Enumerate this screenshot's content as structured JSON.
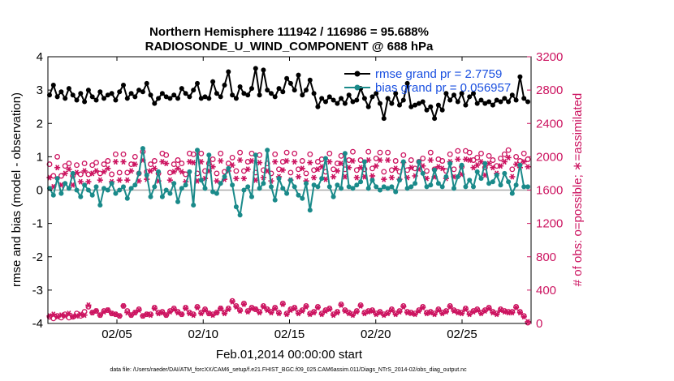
{
  "chart_data": {
    "type": "line",
    "title_line1": "Northern Hemisphere 111942 / 116986 = 95.688%",
    "title_line2": "RADIOSONDE_U_WIND_COMPONENT @ 688 hPa",
    "xlabel": "Feb.01,2014 00:00:00 start",
    "ylabel_left": "rmse and bias (model - observation)",
    "ylabel_right": "# of obs: o=possible; ∗=assimilated",
    "footnote": "data file: /Users/raeder/DAI/ATM_forcXX/CAM6_setup/f.e21.FHIST_BGC.f09_025.CAM6assim.011/Diags_NTrS_2014-02/obs_diag_output.nc",
    "x_day_range": [
      1,
      29
    ],
    "ylim_left": [
      -4,
      4
    ],
    "ylim_right": [
      0,
      3200
    ],
    "x_ticks": [
      {
        "day": 5,
        "label": "02/05"
      },
      {
        "day": 10,
        "label": "02/10"
      },
      {
        "day": 15,
        "label": "02/15"
      },
      {
        "day": 20,
        "label": "02/20"
      },
      {
        "day": 25,
        "label": "02/25"
      }
    ],
    "y_ticks_left": [
      {
        "value": 4,
        "label": "4"
      },
      {
        "value": 3,
        "label": "3"
      },
      {
        "value": 2,
        "label": "2"
      },
      {
        "value": 1,
        "label": "1"
      },
      {
        "value": 0,
        "label": "0"
      },
      {
        "value": -1,
        "label": "-1"
      },
      {
        "value": -2,
        "label": "-2"
      },
      {
        "value": -3,
        "label": "-3"
      },
      {
        "value": -4,
        "label": "-4"
      }
    ],
    "y_ticks_right": [
      {
        "value": 3200,
        "label": "3200"
      },
      {
        "value": 2800,
        "label": "2800"
      },
      {
        "value": 2400,
        "label": "2400"
      },
      {
        "value": 2000,
        "label": "2000"
      },
      {
        "value": 1600,
        "label": "1600"
      },
      {
        "value": 1200,
        "label": "1200"
      },
      {
        "value": 800,
        "label": "800"
      },
      {
        "value": 400,
        "label": "400"
      },
      {
        "value": 0,
        "label": "0"
      }
    ],
    "legend": [
      {
        "name": "rmse grand pr = 2.7759",
        "color": "#000000"
      },
      {
        "name": "bias grand pr = 0.056957",
        "color": "#127f7f"
      }
    ],
    "colors": {
      "rmse": "#000000",
      "bias": "#1a8a8a",
      "obs": "#cc1460",
      "zero_line": "#aaaaaa",
      "legend_text": "#1a50e0"
    },
    "series": [
      {
        "name": "rmse",
        "axis": "left",
        "values": [
          2.85,
          3.15,
          2.8,
          2.95,
          2.75,
          3.05,
          2.85,
          2.7,
          2.9,
          2.65,
          3.0,
          2.8,
          2.7,
          2.95,
          2.75,
          2.85,
          2.9,
          2.7,
          2.95,
          3.15,
          2.75,
          2.9,
          2.8,
          3.0,
          2.95,
          3.2,
          2.85,
          2.6,
          2.75,
          2.9,
          2.8,
          2.75,
          2.85,
          2.75,
          3.05,
          2.9,
          2.8,
          3.0,
          3.2,
          2.75,
          2.8,
          2.75,
          3.25,
          2.9,
          2.8,
          3.15,
          3.55,
          2.85,
          2.75,
          3.1,
          2.9,
          2.85,
          3.05,
          3.65,
          2.85,
          3.6,
          3.0,
          2.9,
          2.8,
          3.05,
          2.95,
          3.35,
          3.2,
          3.0,
          3.45,
          2.85,
          3.0,
          3.3,
          2.9,
          2.5,
          2.75,
          2.65,
          2.8,
          2.7,
          2.6,
          2.75,
          2.6,
          2.85,
          2.65,
          2.7,
          3.05,
          2.75,
          2.5,
          2.8,
          2.9,
          2.6,
          2.15,
          2.75,
          2.6,
          2.9,
          2.55,
          2.7,
          3.2,
          2.5,
          2.55,
          2.6,
          2.65,
          2.4,
          2.5,
          2.15,
          2.55,
          2.4,
          2.9,
          2.7,
          2.85,
          2.65,
          2.9,
          2.55,
          2.8,
          2.9,
          2.6,
          2.7,
          2.6,
          2.65,
          2.55,
          2.7,
          2.65,
          2.75,
          2.65,
          2.85,
          2.7,
          3.4,
          2.75,
          2.65
        ]
      },
      {
        "name": "bias",
        "axis": "left",
        "values": [
          0.05,
          -0.15,
          0.35,
          -0.1,
          0.2,
          0.05,
          0.5,
          0.0,
          -0.2,
          0.15,
          0.0,
          -0.15,
          0.1,
          -0.45,
          0.05,
          0.0,
          0.2,
          -0.1,
          0.0,
          0.1,
          -0.25,
          0.05,
          0.15,
          0.5,
          1.25,
          0.45,
          -0.2,
          0.1,
          0.55,
          -0.2,
          0.0,
          -0.1,
          0.2,
          -0.35,
          0.05,
          0.15,
          0.55,
          -0.45,
          1.2,
          0.3,
          0.05,
          1.05,
          -0.05,
          -0.1,
          0.2,
          0.4,
          0.65,
          0.15,
          -0.5,
          -0.75,
          0.0,
          0.1,
          -0.2,
          1.05,
          0.05,
          0.2,
          1.2,
          0.1,
          -0.3,
          0.35,
          0.05,
          -0.1,
          0.3,
          0.1,
          -0.15,
          -0.25,
          0.2,
          -0.6,
          0.15,
          0.1,
          0.35,
          0.95,
          0.1,
          -0.2,
          0.15,
          0.05,
          1.1,
          0.1,
          0.05,
          0.15,
          0.25,
          0.85,
          0.05,
          0.3,
          0.1,
          0.0,
          0.1,
          0.05,
          0.1,
          -0.05,
          0.3,
          0.85,
          0.05,
          0.1,
          0.2,
          0.85,
          0.5,
          0.1,
          0.15,
          0.6,
          0.2,
          0.1,
          0.4,
          0.8,
          0.05,
          0.4,
          0.75,
          0.1,
          0.3,
          0.1,
          0.55,
          0.35,
          0.8,
          0.2,
          0.25,
          0.45,
          0.15,
          0.5,
          0.25,
          -0.1,
          0.15,
          0.75,
          0.1,
          0.1
        ]
      },
      {
        "name": "obs_possible",
        "axis": "right",
        "marker": "o",
        "values": [
          1910,
          1770,
          2000,
          1770,
          1890,
          1920,
          1770,
          1900,
          1790,
          1920,
          1790,
          1900,
          1930,
          1800,
          1910,
          1950,
          1790,
          2030,
          1810,
          2030,
          1810,
          1910,
          2000,
          1800,
          2060,
          1820,
          1910,
          1950,
          1800,
          2040,
          2020,
          1810,
          1910,
          1960,
          1920,
          1790,
          2040,
          2030,
          1800,
          2040,
          1830,
          1920,
          1970,
          1800,
          2040,
          1820,
          1920,
          1990,
          1830,
          2050,
          1830,
          1940,
          2040,
          1810,
          2020,
          1840,
          1920,
          1800,
          2030,
          1850,
          1940,
          2050,
          1810,
          2040,
          1850,
          1950,
          1800,
          2030,
          1840,
          1940,
          1970,
          1820,
          2040,
          1850,
          1920,
          2010,
          1850,
          1960,
          2060,
          1840,
          1960,
          1850,
          2060,
          1860,
          1980,
          2050,
          1820,
          2050,
          1840,
          1950,
          1820,
          2020,
          1840,
          1960,
          1860,
          1940,
          1980,
          1830,
          2050,
          1850,
          1970,
          1950,
          1830,
          2030,
          1850,
          2070,
          1880,
          2070,
          2050,
          1960,
          1990,
          2040,
          1870,
          2010,
          1960,
          1890,
          1980,
          2030,
          2080,
          1850,
          2000,
          1950,
          2040,
          1970
        ]
      },
      {
        "name": "obs_assimilated",
        "axis": "right",
        "marker": "*",
        "values": [
          1750,
          1640,
          1870,
          1660,
          1800,
          1850,
          1660,
          1810,
          1700,
          1830,
          1700,
          1800,
          1830,
          1720,
          1820,
          1860,
          1700,
          1940,
          1720,
          1940,
          1720,
          1830,
          1910,
          1710,
          1960,
          1730,
          1830,
          1860,
          1710,
          1940,
          1920,
          1720,
          1820,
          1860,
          1820,
          1700,
          1940,
          1930,
          1710,
          1940,
          1740,
          1830,
          1880,
          1710,
          1950,
          1730,
          1830,
          1900,
          1740,
          1960,
          1740,
          1850,
          1950,
          1720,
          1930,
          1750,
          1830,
          1710,
          1940,
          1760,
          1840,
          1950,
          1720,
          1940,
          1760,
          1860,
          1710,
          1930,
          1750,
          1850,
          1880,
          1730,
          1940,
          1760,
          1830,
          1920,
          1760,
          1870,
          1950,
          1750,
          1870,
          1760,
          1960,
          1770,
          1890,
          1960,
          1730,
          1960,
          1750,
          1860,
          1730,
          1930,
          1750,
          1870,
          1770,
          1850,
          1890,
          1740,
          1960,
          1760,
          1880,
          1860,
          1740,
          1940,
          1760,
          1970,
          1790,
          1970,
          1960,
          1870,
          1900,
          1940,
          1780,
          1920,
          1870,
          1800,
          1890,
          1940,
          1990,
          1760,
          1910,
          1870,
          1940,
          1880
        ]
      },
      {
        "name": "obs_bottom_assimilated",
        "axis": "right",
        "marker": "*",
        "values": [
          90,
          110,
          80,
          100,
          90,
          120,
          80,
          90,
          110,
          100,
          220,
          130,
          150,
          100,
          140,
          160,
          120,
          110,
          90,
          210,
          130,
          100,
          130,
          160,
          90,
          110,
          100,
          180,
          120,
          130,
          100,
          140,
          170,
          130,
          110,
          180,
          120,
          100,
          190,
          120,
          160,
          120,
          100,
          130,
          180,
          120,
          170,
          260,
          200,
          150,
          230,
          140,
          180,
          170,
          130,
          200,
          160,
          130,
          180,
          120,
          230,
          110,
          160,
          180,
          120,
          150,
          200,
          110,
          130,
          190,
          110,
          150,
          170,
          100,
          130,
          220,
          150,
          120,
          100,
          140,
          210,
          120,
          140,
          150,
          110,
          130,
          100,
          120,
          160,
          110,
          140,
          200,
          130,
          120,
          110,
          150,
          190,
          120,
          130,
          110,
          160,
          120,
          140,
          200,
          150,
          130,
          120,
          170,
          110,
          140,
          160,
          120,
          150,
          180,
          130,
          110,
          160,
          140,
          130,
          130,
          190,
          130,
          80,
          20
        ]
      },
      {
        "name": "obs_bottom_possible",
        "axis": "right",
        "marker": "o",
        "values": [
          80,
          60,
          90,
          70,
          110,
          70,
          80,
          120,
          90,
          140,
          200,
          130,
          150,
          100,
          150,
          160,
          120,
          110,
          90,
          210,
          150,
          100,
          130,
          170,
          90,
          110,
          110,
          190,
          130,
          140,
          100,
          150,
          180,
          140,
          110,
          190,
          130,
          110,
          200,
          130,
          170,
          120,
          110,
          130,
          180,
          130,
          180,
          270,
          210,
          160,
          240,
          150,
          190,
          170,
          140,
          210,
          170,
          140,
          190,
          130,
          240,
          120,
          170,
          190,
          130,
          160,
          210,
          120,
          140,
          200,
          120,
          160,
          180,
          110,
          140,
          230,
          160,
          130,
          110,
          150,
          220,
          130,
          150,
          160,
          120,
          140,
          110,
          130,
          170,
          120,
          150,
          210,
          140,
          130,
          120,
          160,
          200,
          130,
          140,
          120,
          170,
          130,
          150,
          210,
          160,
          140,
          130,
          180,
          120,
          150,
          170,
          130,
          160,
          190,
          140,
          120,
          170,
          150,
          140,
          140,
          200,
          140,
          90,
          10
        ]
      }
    ]
  }
}
